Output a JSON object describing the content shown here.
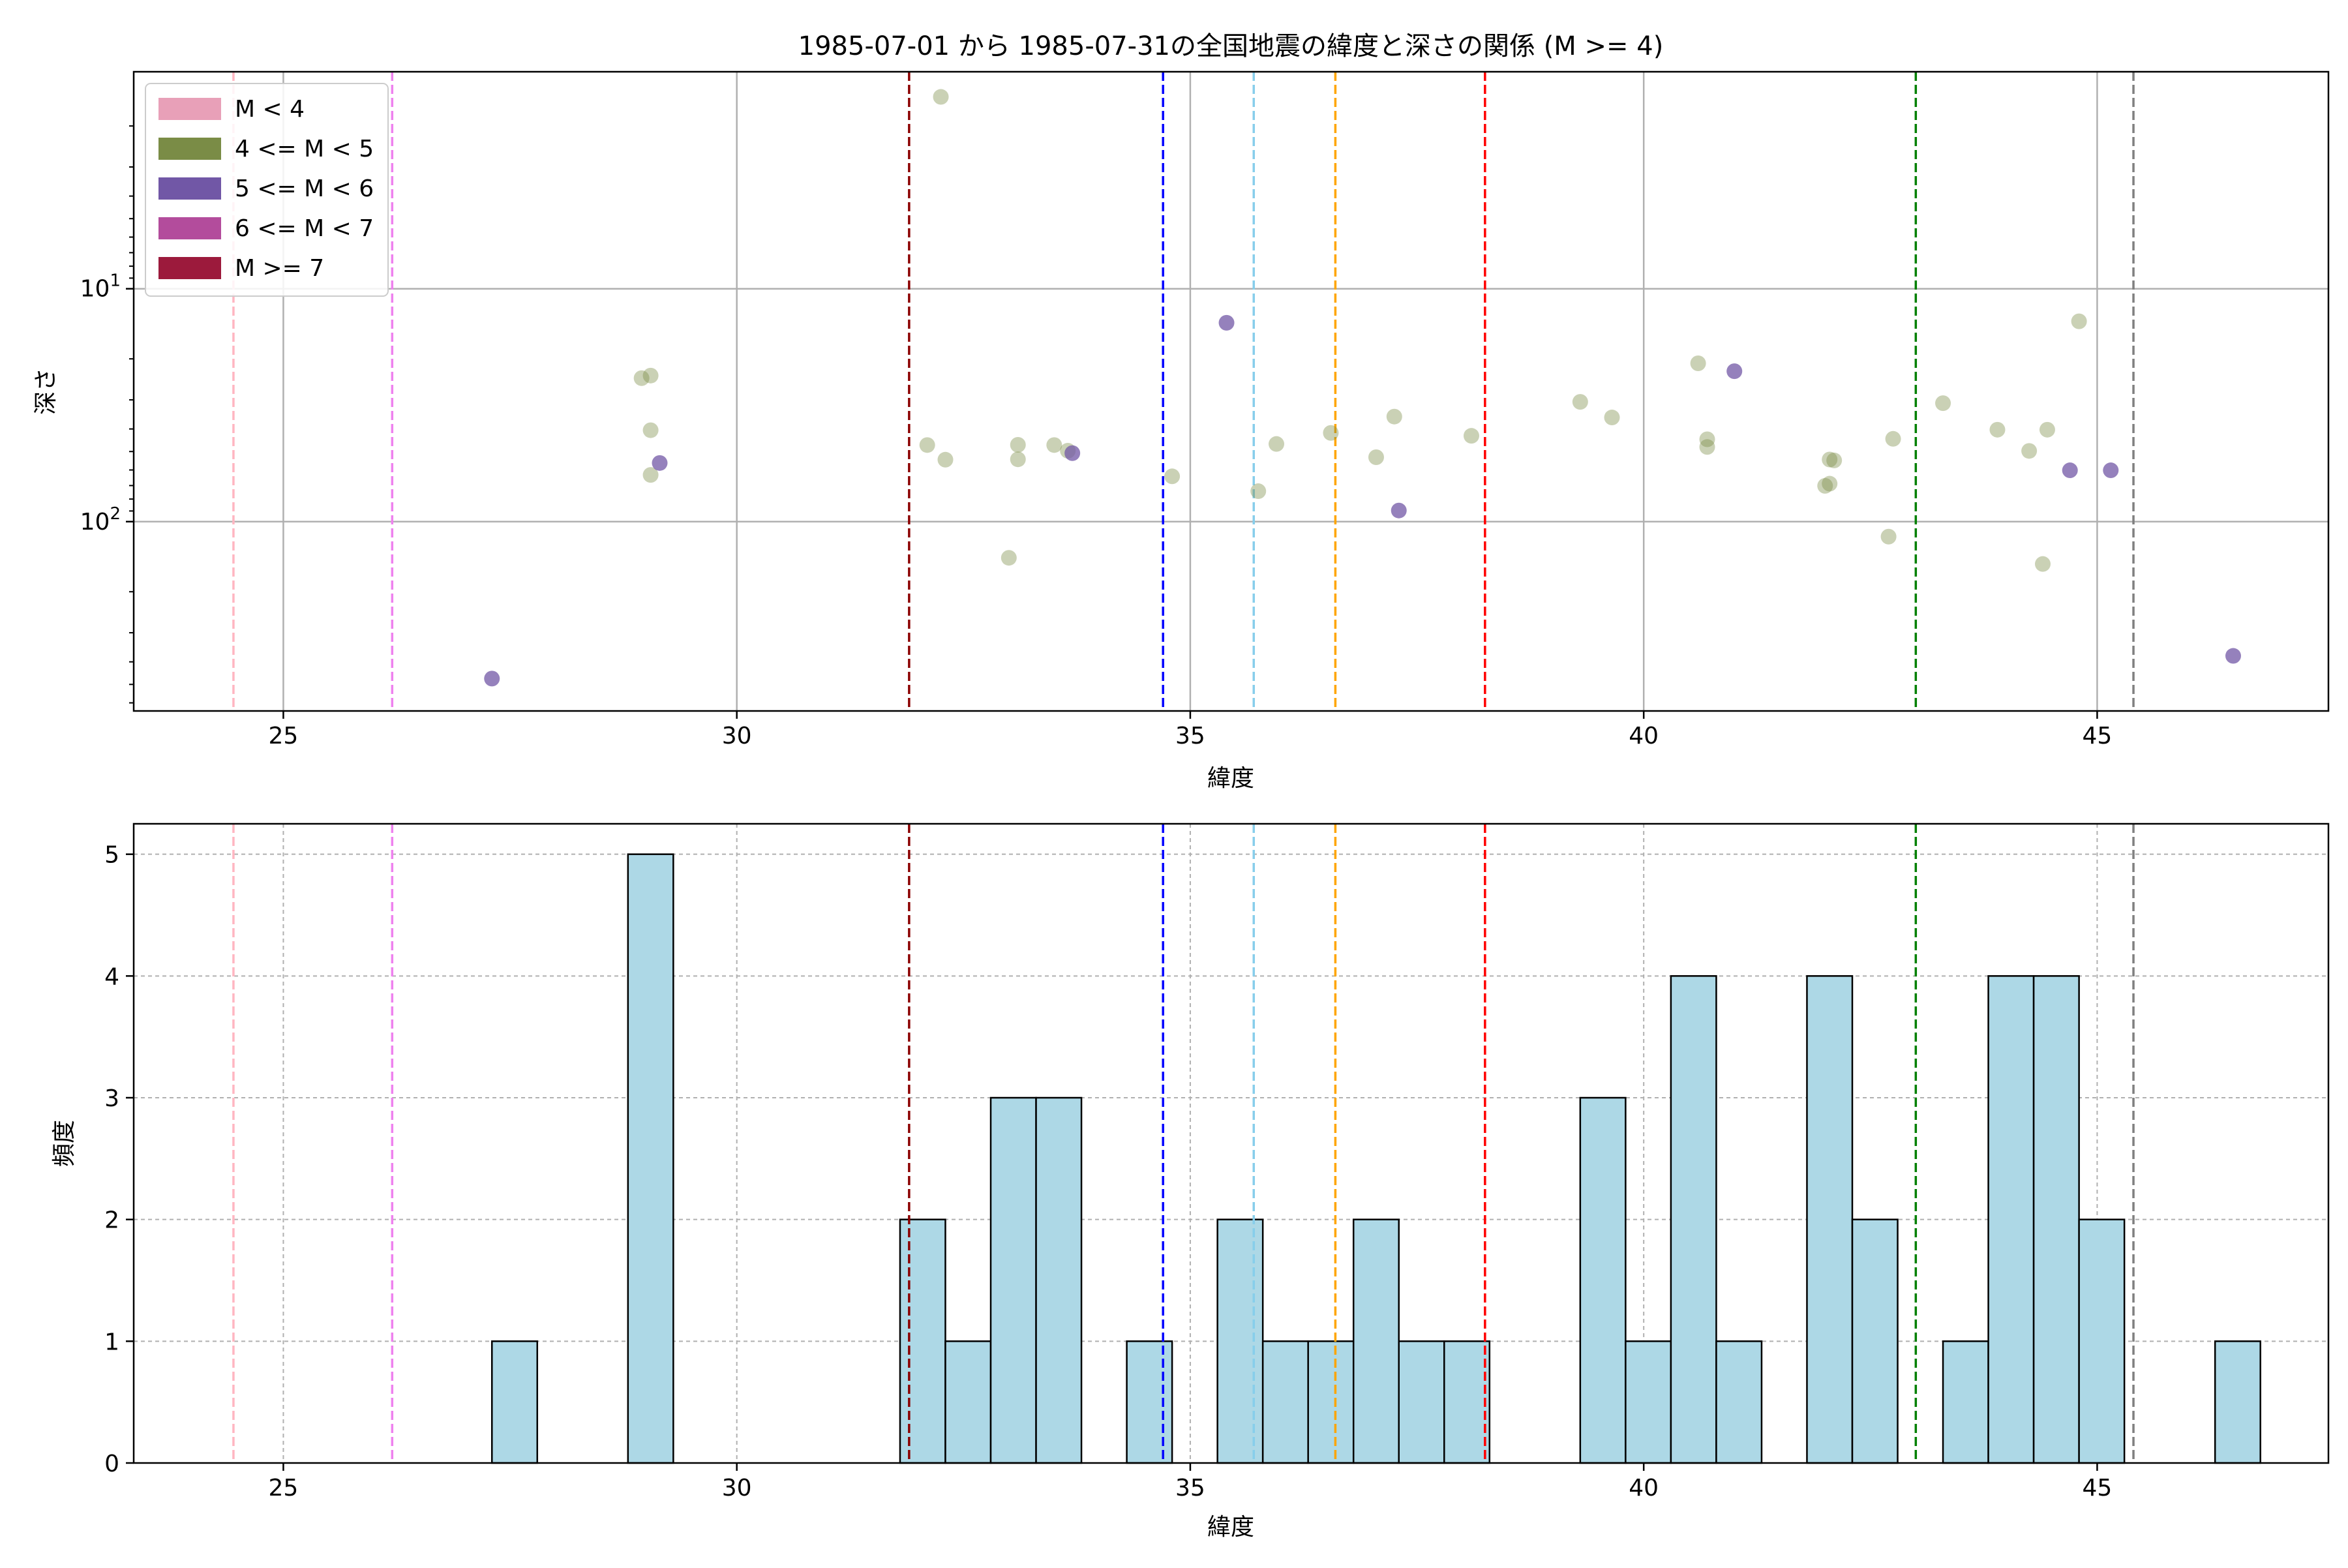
{
  "title": "1985-07-01 から 1985-07-31の全国地震の緯度と深さの関係 (M >= 4)",
  "colors": {
    "scatter_m4_5": "#7a8c46",
    "scatter_m5_6": "#7157a6",
    "hist_fill": "#add8e6",
    "grid": "#b0b0b0"
  },
  "legend": {
    "placement": "upper-left",
    "entries": [
      {
        "label": "M < 4",
        "color": "#e8a0b8"
      },
      {
        "label": "4 <= M < 5",
        "color": "#7a8c46"
      },
      {
        "label": "5 <= M < 6",
        "color": "#7157a6"
      },
      {
        "label": "6 <= M < 7",
        "color": "#b34c9c"
      },
      {
        "label": "M >= 7",
        "color": "#9c1a3c"
      }
    ]
  },
  "vlines": [
    {
      "x": 24.45,
      "color": "#ffb6c1"
    },
    {
      "x": 26.2,
      "color": "#ee82ee"
    },
    {
      "x": 31.9,
      "color": "#8b0000"
    },
    {
      "x": 34.7,
      "color": "#0000ff"
    },
    {
      "x": 35.7,
      "color": "#87ceeb"
    },
    {
      "x": 36.6,
      "color": "#ffa500"
    },
    {
      "x": 38.25,
      "color": "#ff0000"
    },
    {
      "x": 43.0,
      "color": "#008000"
    },
    {
      "x": 45.4,
      "color": "#808080"
    }
  ],
  "chart_data": [
    {
      "type": "scatter",
      "xlabel": "緯度",
      "ylabel": "深さ",
      "xlim": [
        23.35,
        47.55
      ],
      "ylim": [
        650,
        1.17
      ],
      "yscale": "log",
      "y_inverted": true,
      "grid": true,
      "xticks": [
        25,
        30,
        35,
        40,
        45
      ],
      "yticks": [
        {
          "value": 10,
          "base": "10",
          "exp": "1"
        },
        {
          "value": 100,
          "base": "10",
          "exp": "2"
        }
      ],
      "series": [
        {
          "name": "4 <= M < 5",
          "color": "#7a8c46",
          "points": [
            [
              28.95,
              24.2
            ],
            [
              29.05,
              23.6
            ],
            [
              29.05,
              40.5
            ],
            [
              29.05,
              63.0
            ],
            [
              32.25,
              1.5
            ],
            [
              32.1,
              46.9
            ],
            [
              32.3,
              54.2
            ],
            [
              33.5,
              46.9
            ],
            [
              33.0,
              143
            ],
            [
              33.1,
              46.8
            ],
            [
              33.1,
              54.0
            ],
            [
              33.65,
              49.6
            ],
            [
              34.8,
              63.9
            ],
            [
              35.75,
              74.0
            ],
            [
              35.95,
              46.4
            ],
            [
              36.55,
              41.6
            ],
            [
              37.05,
              52.9
            ],
            [
              37.25,
              35.4
            ],
            [
              38.1,
              42.8
            ],
            [
              39.3,
              30.6
            ],
            [
              39.65,
              35.7
            ],
            [
              40.6,
              20.9
            ],
            [
              40.7,
              44.3
            ],
            [
              40.7,
              47.8
            ],
            [
              42.0,
              70.2
            ],
            [
              42.05,
              68.7
            ],
            [
              42.05,
              54.1
            ],
            [
              42.1,
              54.6
            ],
            [
              42.7,
              116
            ],
            [
              42.75,
              44.1
            ],
            [
              43.3,
              31.0
            ],
            [
              43.9,
              40.3
            ],
            [
              44.25,
              49.7
            ],
            [
              44.4,
              152
            ],
            [
              44.45,
              40.3
            ],
            [
              44.8,
              13.8
            ]
          ]
        },
        {
          "name": "5 <= M < 6",
          "color": "#7157a6",
          "points": [
            [
              27.3,
              472
            ],
            [
              29.15,
              56.0
            ],
            [
              33.7,
              50.8
            ],
            [
              35.4,
              14.0
            ],
            [
              37.3,
              89.6
            ],
            [
              41.0,
              22.6
            ],
            [
              44.7,
              60.2
            ],
            [
              45.15,
              60.2
            ],
            [
              46.5,
              377
            ]
          ]
        }
      ]
    },
    {
      "type": "bar",
      "xlabel": "緯度",
      "ylabel": "頻度",
      "xlim": [
        23.35,
        47.55
      ],
      "ylim": [
        0,
        5.25
      ],
      "grid": true,
      "xticks": [
        25,
        30,
        35,
        40,
        45
      ],
      "yticks": [
        0,
        1,
        2,
        3,
        4,
        5
      ],
      "bin_width": 0.5,
      "bins": [
        {
          "x0": 27.3,
          "count": 1
        },
        {
          "x0": 28.8,
          "count": 5
        },
        {
          "x0": 31.8,
          "count": 2
        },
        {
          "x0": 32.3,
          "count": 1
        },
        {
          "x0": 32.8,
          "count": 3
        },
        {
          "x0": 33.3,
          "count": 3
        },
        {
          "x0": 34.3,
          "count": 1
        },
        {
          "x0": 35.3,
          "count": 2
        },
        {
          "x0": 35.8,
          "count": 1
        },
        {
          "x0": 36.3,
          "count": 1
        },
        {
          "x0": 36.8,
          "count": 2
        },
        {
          "x0": 37.3,
          "count": 1
        },
        {
          "x0": 37.8,
          "count": 1
        },
        {
          "x0": 39.3,
          "count": 3
        },
        {
          "x0": 39.8,
          "count": 1
        },
        {
          "x0": 40.3,
          "count": 4
        },
        {
          "x0": 40.8,
          "count": 1
        },
        {
          "x0": 41.8,
          "count": 4
        },
        {
          "x0": 42.3,
          "count": 2
        },
        {
          "x0": 43.3,
          "count": 1
        },
        {
          "x0": 43.8,
          "count": 4
        },
        {
          "x0": 44.3,
          "count": 4
        },
        {
          "x0": 44.8,
          "count": 2
        },
        {
          "x0": 46.3,
          "count": 1
        }
      ]
    }
  ]
}
